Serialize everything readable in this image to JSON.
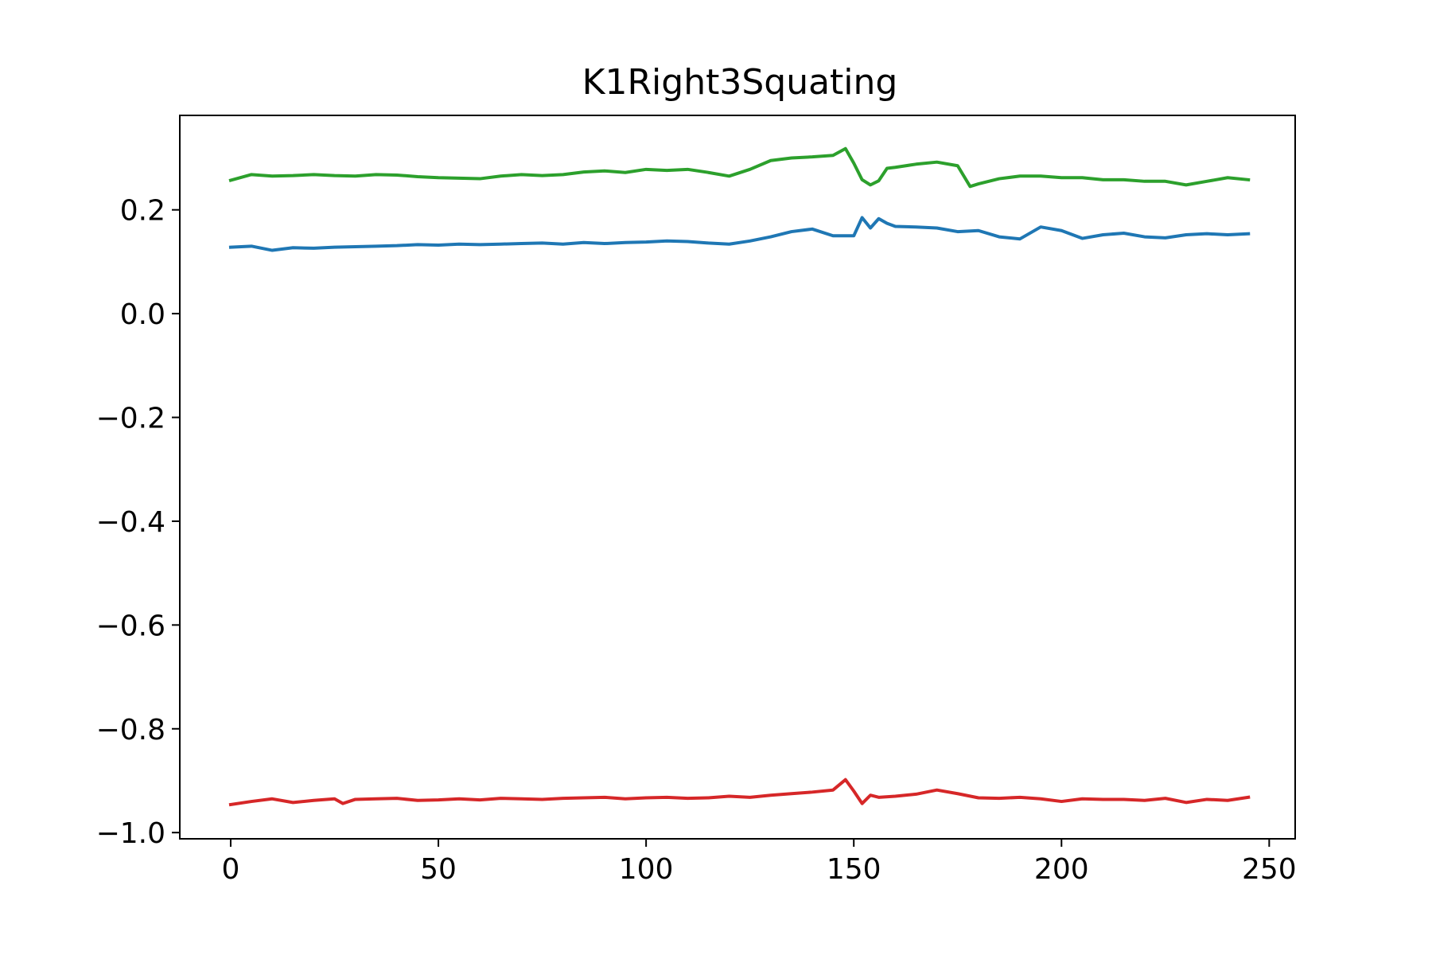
{
  "chart_data": {
    "type": "line",
    "title": "K1Right3Squating",
    "xlabel": "",
    "ylabel": "",
    "xlim": [
      -12.25,
      256.25
    ],
    "ylim": [
      -1.012,
      0.382
    ],
    "x_ticks": [
      0,
      50,
      100,
      150,
      200,
      250
    ],
    "x_tick_labels": [
      "0",
      "50",
      "100",
      "150",
      "200",
      "250"
    ],
    "y_ticks": [
      -1.0,
      -0.8,
      -0.6,
      -0.4,
      -0.2,
      0.0,
      0.2
    ],
    "y_tick_labels": [
      "−1.0",
      "−0.8",
      "−0.6",
      "−0.4",
      "−0.2",
      "0.0",
      "0.2"
    ],
    "grid": false,
    "legend": "none",
    "series": [
      {
        "color": "#1f77b4",
        "x": [
          0,
          5,
          10,
          15,
          20,
          25,
          30,
          35,
          40,
          45,
          50,
          55,
          60,
          65,
          70,
          75,
          80,
          85,
          90,
          95,
          100,
          105,
          110,
          115,
          120,
          125,
          130,
          135,
          140,
          145,
          150,
          152,
          154,
          156,
          158,
          160,
          165,
          170,
          175,
          180,
          185,
          190,
          195,
          200,
          205,
          210,
          215,
          220,
          225,
          230,
          235,
          240,
          245
        ],
        "y": [
          0.128,
          0.13,
          0.122,
          0.127,
          0.126,
          0.128,
          0.129,
          0.13,
          0.131,
          0.133,
          0.132,
          0.134,
          0.133,
          0.134,
          0.135,
          0.136,
          0.134,
          0.137,
          0.135,
          0.137,
          0.138,
          0.14,
          0.139,
          0.136,
          0.134,
          0.14,
          0.148,
          0.158,
          0.163,
          0.15,
          0.15,
          0.185,
          0.165,
          0.183,
          0.174,
          0.168,
          0.167,
          0.165,
          0.158,
          0.16,
          0.148,
          0.144,
          0.167,
          0.16,
          0.145,
          0.152,
          0.155,
          0.148,
          0.146,
          0.152,
          0.154,
          0.152,
          0.154
        ]
      },
      {
        "color": "#2ca02c",
        "x": [
          0,
          5,
          10,
          15,
          20,
          25,
          30,
          35,
          40,
          45,
          50,
          55,
          60,
          65,
          70,
          75,
          80,
          85,
          90,
          95,
          100,
          105,
          110,
          115,
          120,
          125,
          130,
          135,
          140,
          145,
          148,
          150,
          152,
          154,
          156,
          158,
          160,
          165,
          170,
          175,
          178,
          180,
          185,
          190,
          195,
          200,
          205,
          210,
          215,
          220,
          225,
          230,
          235,
          240,
          245
        ],
        "y": [
          0.257,
          0.268,
          0.265,
          0.266,
          0.268,
          0.266,
          0.265,
          0.268,
          0.267,
          0.264,
          0.262,
          0.261,
          0.26,
          0.265,
          0.268,
          0.266,
          0.268,
          0.273,
          0.275,
          0.272,
          0.278,
          0.276,
          0.278,
          0.272,
          0.265,
          0.278,
          0.295,
          0.3,
          0.302,
          0.305,
          0.318,
          0.29,
          0.258,
          0.248,
          0.256,
          0.28,
          0.282,
          0.288,
          0.292,
          0.285,
          0.245,
          0.25,
          0.26,
          0.265,
          0.265,
          0.262,
          0.262,
          0.258,
          0.258,
          0.255,
          0.255,
          0.248,
          0.255,
          0.262,
          0.258
        ]
      },
      {
        "color": "#d62728",
        "x": [
          0,
          5,
          10,
          15,
          20,
          25,
          27,
          30,
          35,
          40,
          45,
          50,
          55,
          60,
          65,
          70,
          75,
          80,
          85,
          90,
          95,
          100,
          105,
          110,
          115,
          120,
          125,
          130,
          135,
          140,
          145,
          148,
          150,
          152,
          154,
          156,
          160,
          165,
          170,
          175,
          180,
          185,
          190,
          195,
          200,
          205,
          210,
          215,
          220,
          225,
          230,
          235,
          240,
          245
        ],
        "y": [
          -0.946,
          -0.94,
          -0.935,
          -0.942,
          -0.938,
          -0.935,
          -0.944,
          -0.936,
          -0.935,
          -0.934,
          -0.938,
          -0.937,
          -0.935,
          -0.937,
          -0.934,
          -0.935,
          -0.936,
          -0.934,
          -0.933,
          -0.932,
          -0.935,
          -0.933,
          -0.932,
          -0.934,
          -0.933,
          -0.93,
          -0.932,
          -0.928,
          -0.925,
          -0.922,
          -0.918,
          -0.898,
          -0.92,
          -0.944,
          -0.928,
          -0.932,
          -0.93,
          -0.926,
          -0.918,
          -0.925,
          -0.933,
          -0.934,
          -0.932,
          -0.935,
          -0.94,
          -0.935,
          -0.936,
          -0.936,
          -0.938,
          -0.934,
          -0.942,
          -0.936,
          -0.938,
          -0.932
        ]
      }
    ]
  }
}
